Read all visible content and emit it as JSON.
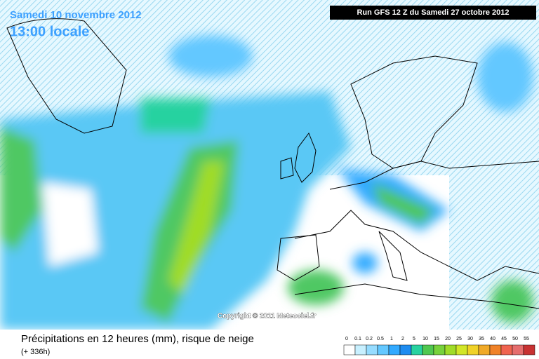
{
  "header": {
    "date": "Samedi 10 novembre 2012",
    "time": "13:00 locale",
    "run": "Run GFS 12 Z du Samedi 27 octobre 2012"
  },
  "copyright": "Copyright © 2011 Meteociel.fr",
  "footer": {
    "title": "Précipitations en 12 heures (mm), risque de neige",
    "lead": "(+ 336h)"
  },
  "legend": {
    "ticks": [
      0,
      0.1,
      0.2,
      0.5,
      1,
      2,
      5,
      10,
      15,
      20,
      25,
      30,
      35,
      40,
      45,
      50,
      55
    ],
    "colors": [
      "#ffffff",
      "#c8f0ff",
      "#96dcff",
      "#64c8ff",
      "#32aaff",
      "#1e8cf0",
      "#28d2a0",
      "#50c850",
      "#78d23c",
      "#a0dc28",
      "#d2e628",
      "#f0d228",
      "#f0aa28",
      "#f08228",
      "#f06450",
      "#e66e6e",
      "#c83232"
    ]
  }
}
